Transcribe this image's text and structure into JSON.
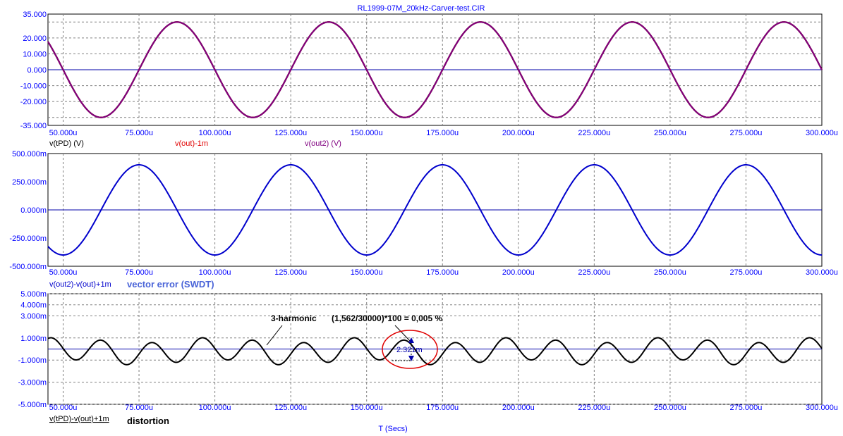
{
  "title": "RL1999-07M_20kHz-Carver-test.CIR",
  "x_axis_label": "T (Secs)",
  "colors": {
    "axis_text": "#0000ff",
    "black": "#000000",
    "red": "#e00000",
    "blue": "#0000cc",
    "purple": "#800080",
    "grid": "#808080",
    "zero": "#0000aa"
  },
  "chart_data": [
    {
      "type": "line",
      "xlim": [
        45,
        300
      ],
      "ylim": [
        -35,
        35
      ],
      "x_ticks": [
        "50.000u",
        "75.000u",
        "100.000u",
        "125.000u",
        "150.000u",
        "175.000u",
        "200.000u",
        "225.000u",
        "250.000u",
        "275.000u",
        "300.000u"
      ],
      "y_ticks": [
        {
          "v": 35,
          "label": "35.000"
        },
        {
          "v": 20,
          "label": "20.000"
        },
        {
          "v": 10,
          "label": "10.000"
        },
        {
          "v": 0,
          "label": "0.000"
        },
        {
          "v": -10,
          "label": "-10.000"
        },
        {
          "v": -20,
          "label": "-20.000"
        },
        {
          "v": -35,
          "label": "-35.000"
        }
      ],
      "gridlines": [
        30,
        20,
        10,
        0,
        -10,
        -20,
        -30
      ],
      "series": [
        {
          "name": "v(tPD) (V)",
          "color": "#000000",
          "amplitude": 30,
          "freq_hz": 20000,
          "phase": "sin",
          "sign": -1
        },
        {
          "name": "v(out)-1m",
          "color": "#e00000",
          "amplitude": 30,
          "freq_hz": 20000,
          "phase": "sin",
          "sign": -1
        },
        {
          "name": "v(out2) (V)",
          "color": "#800080",
          "amplitude": 30,
          "freq_hz": 20000,
          "phase": "sin",
          "sign": -1
        }
      ]
    },
    {
      "type": "line",
      "xlim": [
        45,
        300
      ],
      "ylim": [
        -500,
        500
      ],
      "x_ticks": [
        "50.000u",
        "75.000u",
        "100.000u",
        "125.000u",
        "150.000u",
        "175.000u",
        "200.000u",
        "225.000u",
        "250.000u",
        "275.000u",
        "300.000u"
      ],
      "y_ticks": [
        {
          "v": 500,
          "label": "500.000m"
        },
        {
          "v": 250,
          "label": "250.000m"
        },
        {
          "v": 0,
          "label": "0.000m"
        },
        {
          "v": -250,
          "label": "-250.000m"
        },
        {
          "v": -500,
          "label": "-500.000m"
        }
      ],
      "gridlines": [],
      "series": [
        {
          "name": "v(out2)-v(out)+1m",
          "color": "#0000cc",
          "amplitude": 400,
          "freq_hz": 20000,
          "phase": "cos",
          "sign": -1
        }
      ],
      "annotation": "vector error (SWDT)"
    },
    {
      "type": "line",
      "xlim": [
        45,
        300
      ],
      "ylim": [
        -5,
        5
      ],
      "x_ticks": [
        "50.000u",
        "75.000u",
        "100.000u",
        "125.000u",
        "150.000u",
        "175.000u",
        "200.000u",
        "225.000u",
        "250.000u",
        "275.000u",
        "300.000u"
      ],
      "y_ticks": [
        {
          "v": 5,
          "label": "5.000m"
        },
        {
          "v": 4,
          "label": "4.000m"
        },
        {
          "v": 3,
          "label": "3.000m"
        },
        {
          "v": 1,
          "label": "1.000m"
        },
        {
          "v": -1,
          "label": "-1.000m"
        },
        {
          "v": -3,
          "label": "-3.000m"
        },
        {
          "v": -5,
          "label": "-5.000m"
        }
      ],
      "gridlines": [
        5,
        4,
        3,
        1,
        -1,
        -3,
        -5
      ],
      "series": [
        {
          "name": "v(tPD)-v(out)+1m",
          "color": "#000000",
          "amplitude": 1.0,
          "freq_hz": 60000,
          "offset": -0.2,
          "secondary_amplitude": 0.25
        }
      ],
      "annotations": {
        "harmonic": "3-harmonic",
        "formula": "(1,562/30000)*100 = 0,005 %",
        "measure": "2.321m",
        "label": "distortion"
      }
    }
  ],
  "legend_top": {
    "s1": "v(tPD) (V)",
    "s2": "v(out)-1m",
    "s3": "v(out2) (V)"
  },
  "legend_mid": {
    "s1": "v(out2)-v(out)+1m",
    "note": "vector error (SWDT)"
  },
  "legend_bot": {
    "s1": "v(tPD)-v(out)+1m",
    "note": "distortion"
  },
  "annot_bot": {
    "harmonic": "3-harmonic",
    "formula": "(1,562/30000)*100 = 0,005 %",
    "measure": "2.321m"
  }
}
